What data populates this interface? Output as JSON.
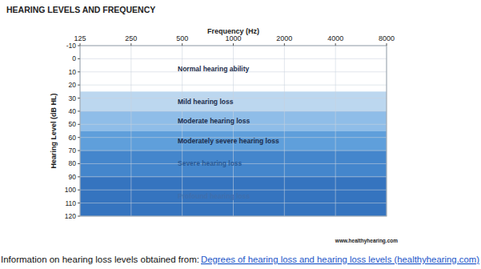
{
  "chart_data": {
    "type": "range",
    "title": "HEARING LEVELS AND FREQUENCY",
    "x_label": "Frequency (Hz)",
    "y_label": "Hearing Level (dB HL)",
    "source": "www.healthyhearing.com",
    "footer": "Information on hearing loss levels obtained from: ",
    "footer_link": "Degrees of hearing loss and hearing loss levels (healthyhearing.com)",
    "log": "x",
    "grid": true,
    "xlim": [
      125,
      8000
    ],
    "xticks": [
      125,
      250,
      500,
      1000,
      2000,
      4000,
      8000
    ],
    "ylim": [
      120,
      -10
    ],
    "yticks": [
      -10,
      0,
      10,
      20,
      30,
      40,
      50,
      60,
      70,
      80,
      90,
      100,
      110,
      120
    ],
    "series": [
      {
        "name": "Normal hearing ability",
        "color": "#ffffff",
        "values": [
          -10,
          25
        ]
      },
      {
        "name": "Mild hearing loss",
        "color": "#bcd7ef",
        "values": [
          25,
          40
        ]
      },
      {
        "name": "Moderate hearing loss",
        "color": "#8fbde8",
        "values": [
          40,
          55
        ]
      },
      {
        "name": "Moderately severe hearing loss",
        "color": "#5f9fdb",
        "values": [
          55,
          70
        ]
      },
      {
        "name": "Severe hearing loss",
        "color": "#4486cc",
        "values": [
          70,
          90
        ]
      },
      {
        "name": "Profound hearing loss",
        "color": "#3574bf",
        "values": [
          90,
          120
        ]
      }
    ]
  }
}
